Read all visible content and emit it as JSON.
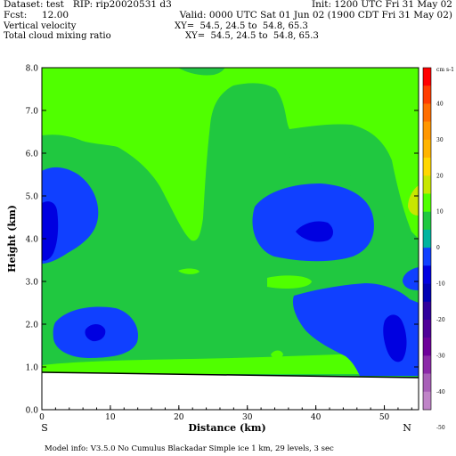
{
  "header": {
    "dataset": "Dataset: test   RIP: rip20020531 d3",
    "init": "Init: 1200 UTC Fri 31 May 02",
    "fcst": "Fcst:     12.00",
    "valid": "Valid: 0000 UTC Sat 01 Jun 02 (1900 CDT Fri 31 May 02)",
    "field1": "Vertical velocity",
    "xy1": "XY=  54.5, 24.5 to  54.8, 65.3",
    "field2": "Total cloud mixing ratio",
    "xy2": "XY=  54.5, 24.5 to  54.8, 65.3"
  },
  "footer": {
    "model_info": "Model info: V3.5.0 No Cumulus Blackadar  Simple ice     1 km,  29 levels,      3 sec"
  },
  "chart_data": {
    "type": "contour",
    "xlabel": "Distance (km)",
    "ylabel": "Height (km)",
    "xlim": [
      0,
      55
    ],
    "ylim": [
      0.0,
      8.0
    ],
    "x_ticks": [
      "0",
      "10",
      "20",
      "30",
      "40",
      "50"
    ],
    "y_ticks": [
      "0.0",
      "1.0",
      "2.0",
      "3.0",
      "4.0",
      "5.0",
      "6.0",
      "7.0",
      "8.0"
    ],
    "endpoint_labels": {
      "left": "S",
      "right": "N"
    },
    "colorbar": {
      "unit_label": "cm s-1",
      "tick_labels": [
        "40",
        "30",
        "20",
        "10",
        "0",
        "-10",
        "-20",
        "-30",
        "-40",
        "-50"
      ],
      "colors": [
        "#ff0000",
        "#ff3c00",
        "#ff6e00",
        "#ff9600",
        "#ffb400",
        "#ffd700",
        "#c8e600",
        "#50ff00",
        "#20c840",
        "#00b4a0",
        "#1040ff",
        "#0000e0",
        "#0000b4",
        "#30009c",
        "#500098",
        "#6e009a",
        "#8c2aa8",
        "#a860b8",
        "#c084c8"
      ]
    },
    "filled_regions": [
      {
        "level": "0 to 10",
        "color": "#20c840",
        "desc": "background, most of domain"
      },
      {
        "level": "10 to 20",
        "color": "#50ff00",
        "desc": "upper layer above ~6 km, lower band ~1 km, small patches"
      },
      {
        "level": "-10 to 0",
        "color": "#1040ff",
        "desc": "downdraft cells near x=0-9 km at ~5 km, x=33-47 km at ~4.5 km, x=2-14 km at ~2 km, x=37-55 km at ~1.5 km"
      },
      {
        "level": "-20 to -10",
        "color": "#0000e0",
        "desc": "cores inside downdraft cells"
      },
      {
        "level": "20 to 30",
        "color": "#c8e600",
        "desc": "small patch at right edge ~6 km"
      }
    ],
    "terrain_height_km": {
      "x": [
        0,
        55
      ],
      "y": [
        0.9,
        0.8
      ]
    }
  }
}
